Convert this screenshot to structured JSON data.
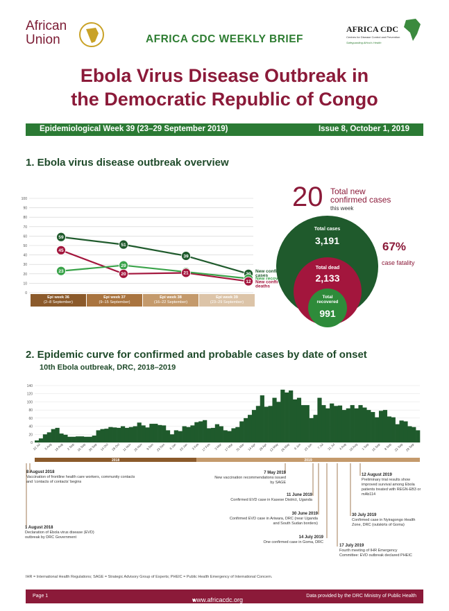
{
  "header": {
    "au_logo_text": "African Union",
    "cdc_logo_text": "AFRICA CDC",
    "cdc_logo_subtext": "Centres for Disease Control and Prevention",
    "cdc_logo_tagline": "Safeguarding Africa's Health",
    "brief_title": "AFRICA CDC WEEKLY BRIEF",
    "title_line1": "Ebola Virus Disease Outbreak in",
    "title_line2": "the Democratic Republic of Congo"
  },
  "banner": {
    "left": "Epidemiological  Week 39 (23–29 September 2019)",
    "right": "Issue 8, October 1, 2019"
  },
  "section1": {
    "title": "1. Ebola virus disease outbreak overview",
    "line_chart": {
      "y_ticks": [
        "100",
        "90",
        "80",
        "70",
        "60",
        "50",
        "40",
        "30",
        "20",
        "10",
        "0"
      ],
      "weeks": [
        {
          "label": "Epi week 36",
          "dates": "(2–8 September)",
          "color": "#8b5a2b"
        },
        {
          "label": "Epi week 37",
          "dates": "(9–15 September)",
          "color": "#a9743f"
        },
        {
          "label": "Epi week 38",
          "dates": "(16–22 September)",
          "color": "#c49a6c"
        },
        {
          "label": "Epi week 39",
          "dates": "(23–29 September)",
          "color": "#dcc4a8"
        }
      ]
    },
    "total_new": "20",
    "total_new_label_1": "Total new",
    "total_new_label_2": "confirmed cases",
    "total_new_label_3": "this week",
    "total_cases_label": "Total cases",
    "total_cases": "3,191",
    "total_dead_label": "Total dead",
    "total_dead": "2,133",
    "total_recovered_label": "Total recovered",
    "total_recovered": "991",
    "cfr": "67%",
    "cfr_label": "case fatality"
  },
  "chart_data": [
    {
      "type": "line",
      "categories": [
        "Epi week 36 (2–8 September)",
        "Epi week 37 (9–15 September)",
        "Epi week 38 (16–22 September)",
        "Epi week 39 (23–29 September)"
      ],
      "ylim": [
        0,
        100
      ],
      "series": [
        {
          "name": "New confirmed cases",
          "values": [
            59,
            51,
            39,
            20
          ],
          "color": "#1f5a2c"
        },
        {
          "name": "New recovered",
          "values": [
            23,
            29,
            22,
            15
          ],
          "color": "#3aa34a"
        },
        {
          "name": "New confirmed deaths",
          "values": [
            45,
            20,
            21,
            12
          ],
          "color": "#a3163d"
        }
      ]
    },
    {
      "type": "bar",
      "title": "10th Ebola outbreak, DRC, 2018–2019",
      "ylim": [
        0,
        140
      ],
      "y_ticks": [
        "140",
        "120",
        "100",
        "80",
        "60",
        "40",
        "20",
        "0"
      ],
      "x_ticks": [
        "22 Jul",
        "5 Aug",
        "19 Aug",
        "2 Sep",
        "16 Sep",
        "30 Sep",
        "14 Oct",
        "28 Oct",
        "11 Nov",
        "25 Nov",
        "9 Dec",
        "23 Dec",
        "6 Jan",
        "20 Jan",
        "3 Feb",
        "17 Feb",
        "3 Mar",
        "17 Mar",
        "31 Mar",
        "14 Apr",
        "28 Apr",
        "12 May",
        "26 May",
        "9 Jun",
        "23 Jun",
        "7 Jul",
        "21 Jul",
        "4 Aug",
        "18 Aug",
        "1 Sep",
        "15 Sep",
        "8 Sep",
        "22 Sep",
        "29 Sep"
      ],
      "year_labels": [
        "2018",
        "2019"
      ],
      "values": [
        5,
        10,
        20,
        25,
        33,
        36,
        22,
        19,
        14,
        14,
        15,
        15,
        14,
        14,
        17,
        30,
        33,
        34,
        38,
        37,
        36,
        40,
        36,
        38,
        40,
        49,
        42,
        37,
        46,
        46,
        43,
        42,
        30,
        20,
        30,
        28,
        40,
        38,
        42,
        50,
        52,
        55,
        35,
        36,
        45,
        40,
        30,
        28,
        35,
        38,
        52,
        60,
        68,
        80,
        90,
        116,
        88,
        90,
        110,
        100,
        130,
        123,
        128,
        106,
        110,
        92,
        92,
        60,
        68,
        110,
        92,
        84,
        96,
        90,
        91,
        80,
        84,
        92,
        84,
        92,
        86,
        80,
        75,
        62,
        78,
        80,
        64,
        62,
        45,
        54,
        52,
        40,
        38,
        30
      ]
    }
  ],
  "section2": {
    "title": "2. Epidemic curve for confirmed and probable cases by date of onset",
    "subtitle": "10th Ebola outbreak, DRC, 2018–2019"
  },
  "timeline": [
    {
      "date": "1 August 2018",
      "text": "Declaration of Ebola virus disease (EVD) outbreak by DRC Government"
    },
    {
      "date": "8 August 2018",
      "text": "Vaccination of frontline health care workers, community contacts and ‘contacts of contacts’ begins"
    },
    {
      "date": "7 May 2019",
      "text": "New vaccination recommendations issued by SAGE"
    },
    {
      "date": "11 June 2019",
      "text": "Confirmed EVD case in Kasese District, Uganda"
    },
    {
      "date": "30 June 2019",
      "text": "Confirmed EVD case in Ariwara, DRC (near Uganda and South Sudan borders)"
    },
    {
      "date": "14 July 2019",
      "text": "One confirmed case in Goma, DRC"
    },
    {
      "date": "17 July 2019",
      "text": "Fourth meeting of IHR Emergency Committee: EVD outbreak declared PHEIC"
    },
    {
      "date": "30 July 2019",
      "text": "Confirmed case in Nyiragongo Health Zone, DRC (outskirts of Goma)"
    },
    {
      "date": "12 August 2019",
      "text": "Preliminary trial results show improved survival among Ebola patients treated with REGN-EB3 or mAb114"
    }
  ],
  "footnote": "IHR = International Health Regulations; SAGE = Strategic Advisory Group of Experts; PHEIC = Public Health Emergency of International Concern.",
  "footer": {
    "page": "Page 1",
    "url": "www.africacdc.org",
    "source": "Data provided by the DRC Ministry of Public Health"
  }
}
